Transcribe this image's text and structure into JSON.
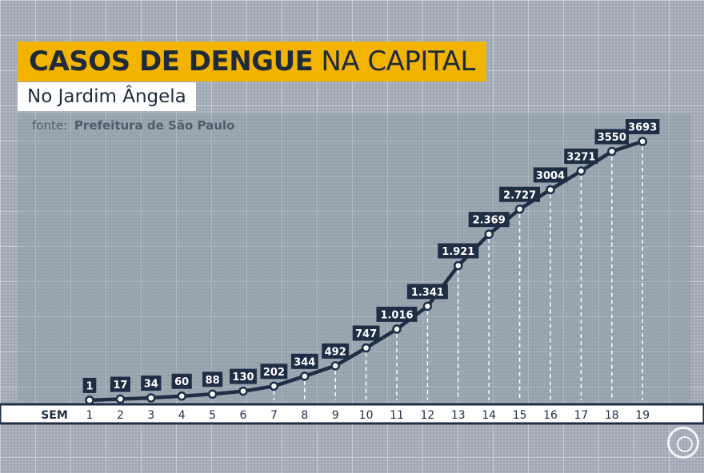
{
  "title_bold": "CASOS DE DENGUE",
  "title_rest": "NA CAPITAL",
  "subtitle": "No Jardim Ângela",
  "source_label": "fonte:",
  "source_name": "Prefeitura de São Paulo",
  "chart_data": {
    "type": "line",
    "xlabel": "SEM",
    "x": [
      1,
      2,
      3,
      4,
      5,
      6,
      7,
      8,
      9,
      10,
      11,
      12,
      13,
      14,
      15,
      16,
      17,
      18,
      19
    ],
    "values": [
      1,
      17,
      34,
      60,
      88,
      130,
      202,
      344,
      492,
      747,
      1016,
      1341,
      1921,
      2369,
      2727,
      3004,
      3271,
      3550,
      3693
    ],
    "value_labels": [
      "1",
      "17",
      "34",
      "60",
      "88",
      "130",
      "202",
      "344",
      "492",
      "747",
      "1.016",
      "1.341",
      "1.921",
      "2.369",
      "2.727",
      "3004",
      "3271",
      "3550",
      "3693"
    ],
    "ylim": [
      0,
      3693
    ],
    "colors": {
      "line": "#1f2e45",
      "label_bg": "#1f2e45",
      "label_text": "#ffffff",
      "accent": "#f3b400"
    }
  }
}
